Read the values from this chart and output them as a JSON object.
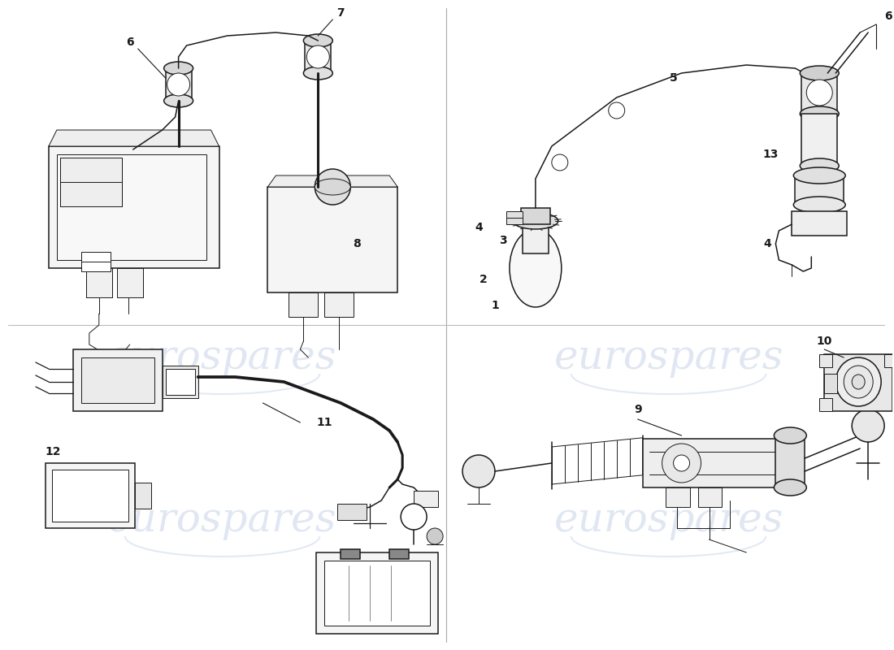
{
  "bg_color": "#ffffff",
  "lc": "#1a1a1a",
  "wm_color": "#c8d4e8",
  "wm_text": "eurospares",
  "wm_fontsize": 36,
  "fig_w": 11.0,
  "fig_h": 8.0,
  "dpi": 100,
  "lw": 1.1,
  "lw_thick": 2.2,
  "lw_thin": 0.7,
  "label_fs": 10,
  "divider_color": "#999999"
}
